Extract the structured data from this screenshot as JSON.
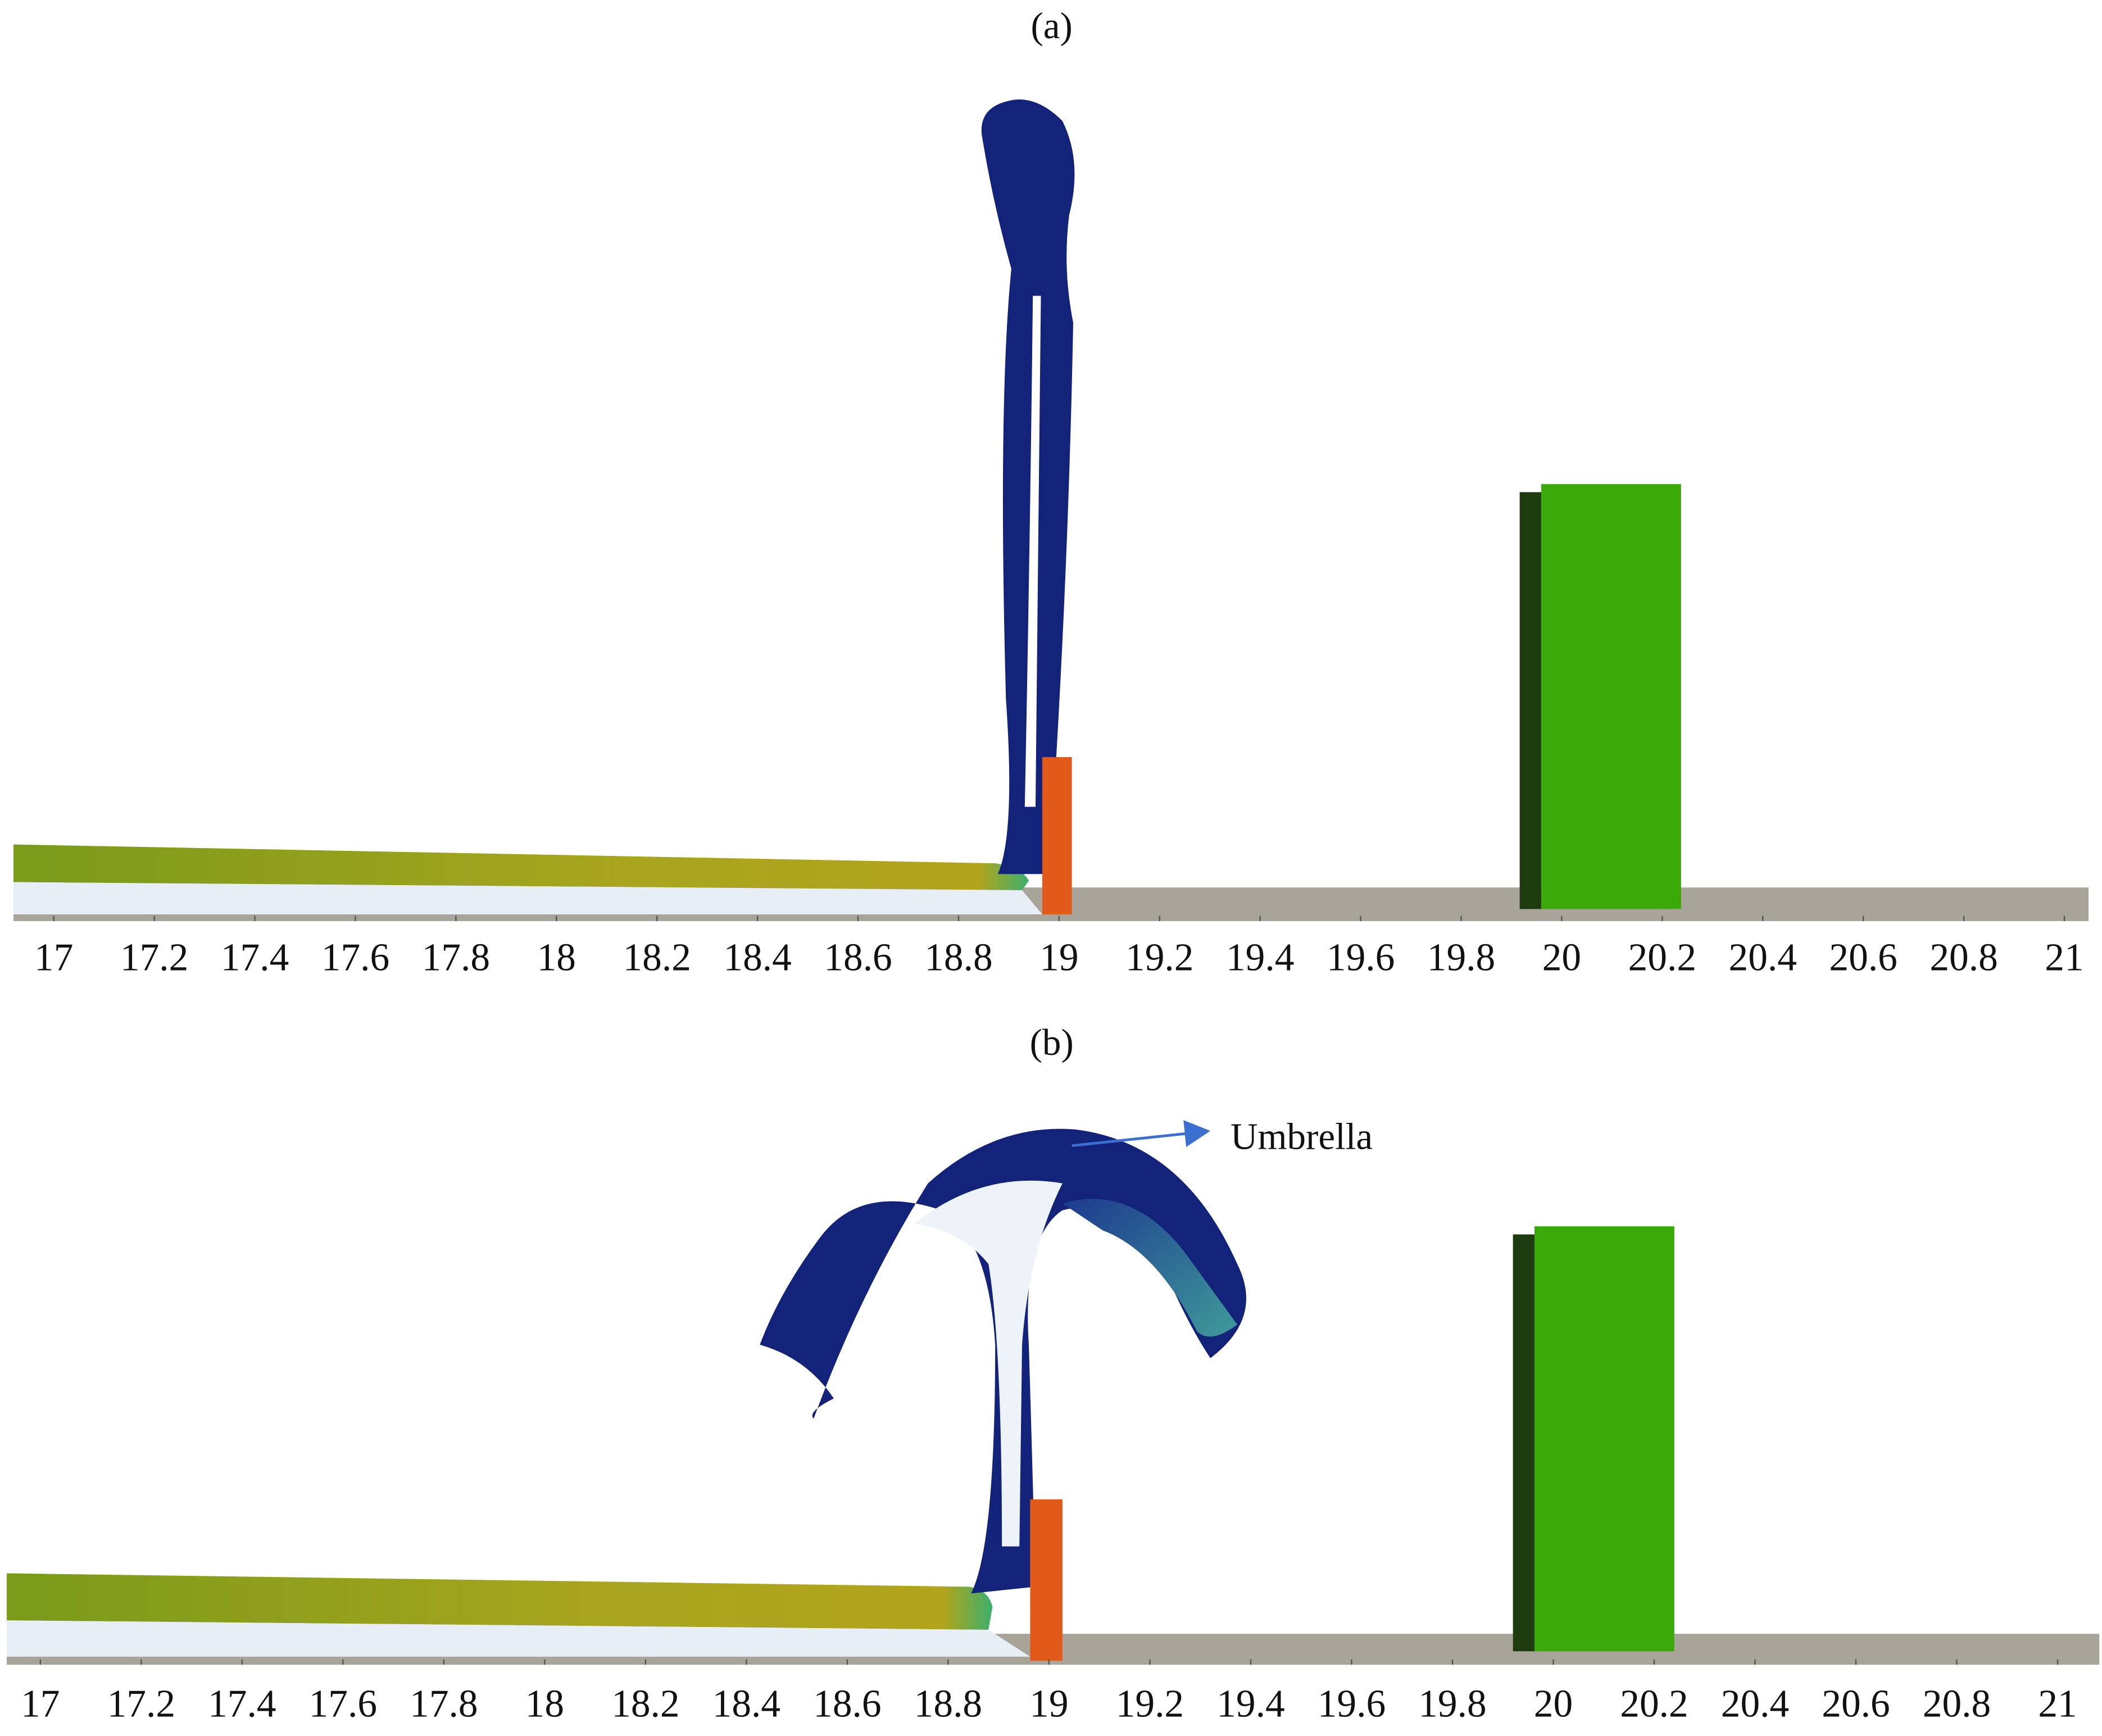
{
  "panels": [
    {
      "label": "(a)",
      "xticks": [
        17,
        17.2,
        17.4,
        17.6,
        17.8,
        18,
        18.2,
        18.4,
        18.6,
        18.8,
        19,
        19.2,
        19.4,
        19.6,
        19.8,
        20,
        20.2,
        20.4,
        20.6,
        20.8,
        21
      ]
    },
    {
      "label": "(b)",
      "xticks": [
        17,
        17.2,
        17.4,
        17.6,
        17.8,
        18,
        18.2,
        18.4,
        18.6,
        18.8,
        19,
        19.2,
        19.4,
        19.6,
        19.8,
        20,
        20.2,
        20.4,
        20.6,
        20.8,
        21
      ],
      "annotation": "Umbrella"
    }
  ]
}
